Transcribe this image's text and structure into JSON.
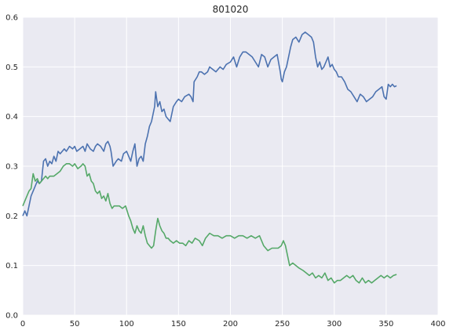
{
  "chart_data": {
    "type": "line",
    "title": "801020",
    "xlabel": "",
    "ylabel": "",
    "xlim": [
      0,
      400
    ],
    "ylim": [
      0,
      0.6
    ],
    "x_ticks": [
      0,
      50,
      100,
      150,
      200,
      250,
      300,
      350,
      400
    ],
    "y_ticks": [
      0.0,
      0.1,
      0.2,
      0.3,
      0.4,
      0.5,
      0.6
    ],
    "x_tick_labels": [
      "0",
      "50",
      "100",
      "150",
      "200",
      "250",
      "300",
      "350",
      "400"
    ],
    "y_tick_labels": [
      "0.0",
      "0.1",
      "0.2",
      "0.3",
      "0.4",
      "0.5",
      "0.6"
    ],
    "grid": true,
    "legend": "none",
    "series": [
      {
        "color": "#4c72b0",
        "x": [
          0,
          2,
          4,
          6,
          8,
          10,
          12,
          14,
          16,
          18,
          20,
          22,
          24,
          26,
          28,
          30,
          32,
          34,
          36,
          38,
          40,
          42,
          45,
          48,
          50,
          52,
          55,
          58,
          60,
          62,
          65,
          68,
          70,
          72,
          75,
          78,
          80,
          82,
          84,
          85,
          87,
          90,
          92,
          95,
          97,
          100,
          102,
          104,
          106,
          108,
          110,
          112,
          114,
          116,
          118,
          120,
          122,
          124,
          126,
          127,
          128,
          130,
          132,
          134,
          136,
          138,
          140,
          142,
          145,
          148,
          150,
          153,
          156,
          160,
          162,
          164,
          165,
          168,
          170,
          172,
          175,
          178,
          180,
          183,
          186,
          190,
          193,
          196,
          200,
          203,
          206,
          209,
          212,
          215,
          218,
          221,
          224,
          227,
          230,
          233,
          236,
          239,
          242,
          245,
          248,
          249,
          250,
          252,
          254,
          256,
          258,
          260,
          263,
          266,
          269,
          272,
          275,
          278,
          280,
          282,
          284,
          286,
          288,
          290,
          292,
          294,
          296,
          298,
          300,
          302,
          304,
          307,
          310,
          313,
          316,
          319,
          322,
          325,
          328,
          331,
          334,
          337,
          340,
          343,
          346,
          348,
          350,
          352,
          354,
          356,
          358,
          360
        ],
        "y": [
          0.2,
          0.21,
          0.2,
          0.22,
          0.24,
          0.25,
          0.26,
          0.27,
          0.265,
          0.27,
          0.31,
          0.315,
          0.3,
          0.31,
          0.305,
          0.32,
          0.31,
          0.33,
          0.325,
          0.33,
          0.335,
          0.33,
          0.34,
          0.335,
          0.34,
          0.33,
          0.335,
          0.34,
          0.33,
          0.345,
          0.335,
          0.33,
          0.34,
          0.345,
          0.34,
          0.33,
          0.345,
          0.35,
          0.34,
          0.33,
          0.3,
          0.31,
          0.315,
          0.31,
          0.325,
          0.33,
          0.32,
          0.31,
          0.33,
          0.345,
          0.3,
          0.315,
          0.32,
          0.31,
          0.345,
          0.36,
          0.38,
          0.39,
          0.41,
          0.42,
          0.45,
          0.42,
          0.43,
          0.41,
          0.415,
          0.4,
          0.395,
          0.39,
          0.42,
          0.43,
          0.435,
          0.43,
          0.44,
          0.445,
          0.44,
          0.43,
          0.47,
          0.48,
          0.49,
          0.49,
          0.485,
          0.49,
          0.5,
          0.495,
          0.49,
          0.5,
          0.495,
          0.505,
          0.51,
          0.52,
          0.5,
          0.52,
          0.53,
          0.53,
          0.525,
          0.52,
          0.51,
          0.5,
          0.525,
          0.52,
          0.5,
          0.515,
          0.52,
          0.525,
          0.49,
          0.475,
          0.47,
          0.49,
          0.5,
          0.52,
          0.54,
          0.555,
          0.56,
          0.55,
          0.565,
          0.57,
          0.565,
          0.56,
          0.55,
          0.52,
          0.5,
          0.51,
          0.495,
          0.5,
          0.51,
          0.52,
          0.5,
          0.505,
          0.495,
          0.49,
          0.48,
          0.48,
          0.47,
          0.455,
          0.45,
          0.44,
          0.43,
          0.445,
          0.44,
          0.43,
          0.435,
          0.44,
          0.45,
          0.455,
          0.46,
          0.44,
          0.435,
          0.465,
          0.46,
          0.465,
          0.46,
          0.462
        ]
      },
      {
        "color": "#55a868",
        "x": [
          0,
          2,
          4,
          6,
          8,
          10,
          12,
          14,
          16,
          18,
          20,
          22,
          24,
          26,
          28,
          30,
          33,
          36,
          39,
          42,
          45,
          48,
          50,
          53,
          56,
          58,
          60,
          62,
          64,
          66,
          68,
          70,
          72,
          74,
          76,
          78,
          80,
          82,
          84,
          86,
          88,
          90,
          93,
          96,
          99,
          102,
          104,
          106,
          108,
          110,
          112,
          114,
          116,
          118,
          120,
          122,
          124,
          126,
          128,
          130,
          132,
          134,
          136,
          138,
          140,
          142,
          145,
          148,
          151,
          154,
          157,
          160,
          163,
          166,
          170,
          173,
          176,
          180,
          184,
          188,
          192,
          196,
          200,
          204,
          208,
          212,
          216,
          220,
          224,
          228,
          232,
          236,
          240,
          243,
          246,
          249,
          251,
          253,
          255,
          257,
          260,
          263,
          266,
          270,
          273,
          276,
          279,
          282,
          285,
          288,
          291,
          294,
          297,
          300,
          303,
          306,
          309,
          312,
          315,
          318,
          321,
          324,
          327,
          330,
          333,
          336,
          339,
          342,
          345,
          348,
          351,
          354,
          357,
          360
        ],
        "y": [
          0.22,
          0.23,
          0.24,
          0.25,
          0.255,
          0.285,
          0.27,
          0.275,
          0.265,
          0.27,
          0.275,
          0.28,
          0.275,
          0.28,
          0.28,
          0.28,
          0.285,
          0.29,
          0.3,
          0.305,
          0.305,
          0.3,
          0.305,
          0.295,
          0.3,
          0.305,
          0.3,
          0.28,
          0.285,
          0.27,
          0.265,
          0.25,
          0.245,
          0.25,
          0.235,
          0.24,
          0.23,
          0.245,
          0.225,
          0.215,
          0.22,
          0.22,
          0.22,
          0.215,
          0.22,
          0.2,
          0.19,
          0.175,
          0.165,
          0.18,
          0.17,
          0.165,
          0.18,
          0.16,
          0.145,
          0.14,
          0.135,
          0.14,
          0.17,
          0.195,
          0.18,
          0.17,
          0.165,
          0.155,
          0.155,
          0.15,
          0.145,
          0.15,
          0.145,
          0.145,
          0.14,
          0.15,
          0.145,
          0.155,
          0.15,
          0.14,
          0.155,
          0.165,
          0.16,
          0.16,
          0.155,
          0.16,
          0.16,
          0.155,
          0.16,
          0.16,
          0.155,
          0.16,
          0.155,
          0.16,
          0.14,
          0.13,
          0.135,
          0.135,
          0.135,
          0.14,
          0.15,
          0.14,
          0.12,
          0.1,
          0.105,
          0.1,
          0.095,
          0.09,
          0.085,
          0.08,
          0.085,
          0.075,
          0.08,
          0.075,
          0.085,
          0.07,
          0.075,
          0.065,
          0.07,
          0.07,
          0.075,
          0.08,
          0.075,
          0.08,
          0.07,
          0.065,
          0.075,
          0.065,
          0.07,
          0.065,
          0.07,
          0.075,
          0.08,
          0.075,
          0.08,
          0.075,
          0.08,
          0.082
        ]
      }
    ]
  }
}
